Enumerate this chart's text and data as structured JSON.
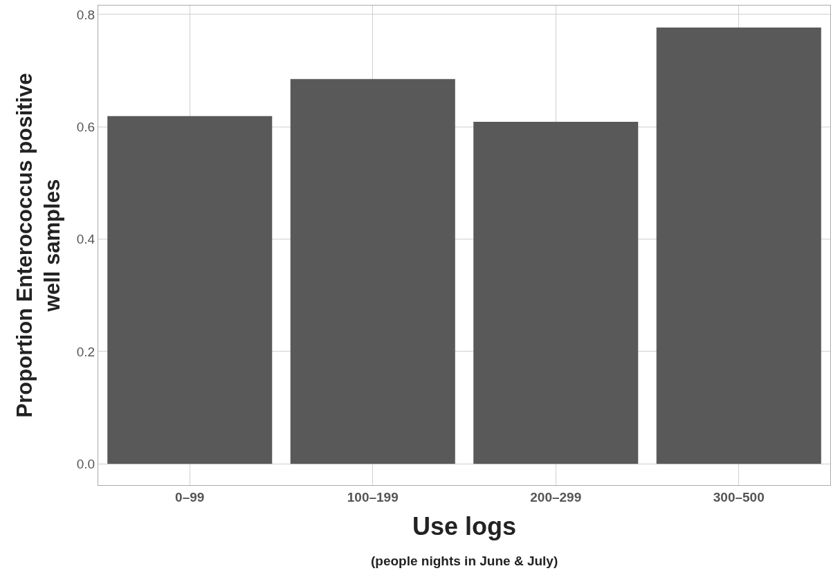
{
  "chart_data": {
    "type": "bar",
    "xlabel": "Use logs",
    "ylabel": "Proportion Enterococcus positive\nwell samples",
    "annotations": [
      "(people nights in June & July)"
    ],
    "categories": [
      "0–99",
      "100–199",
      "200–299",
      "300–500"
    ],
    "values": [
      0.619,
      0.685,
      0.609,
      0.777
    ],
    "color": "#595959",
    "ylim": [
      -0.038,
      0.816
    ],
    "yticks": [
      {
        "value": 0,
        "label": "0.0"
      },
      0.2,
      0.4,
      0.6,
      0.8
    ],
    "grid": true
  }
}
